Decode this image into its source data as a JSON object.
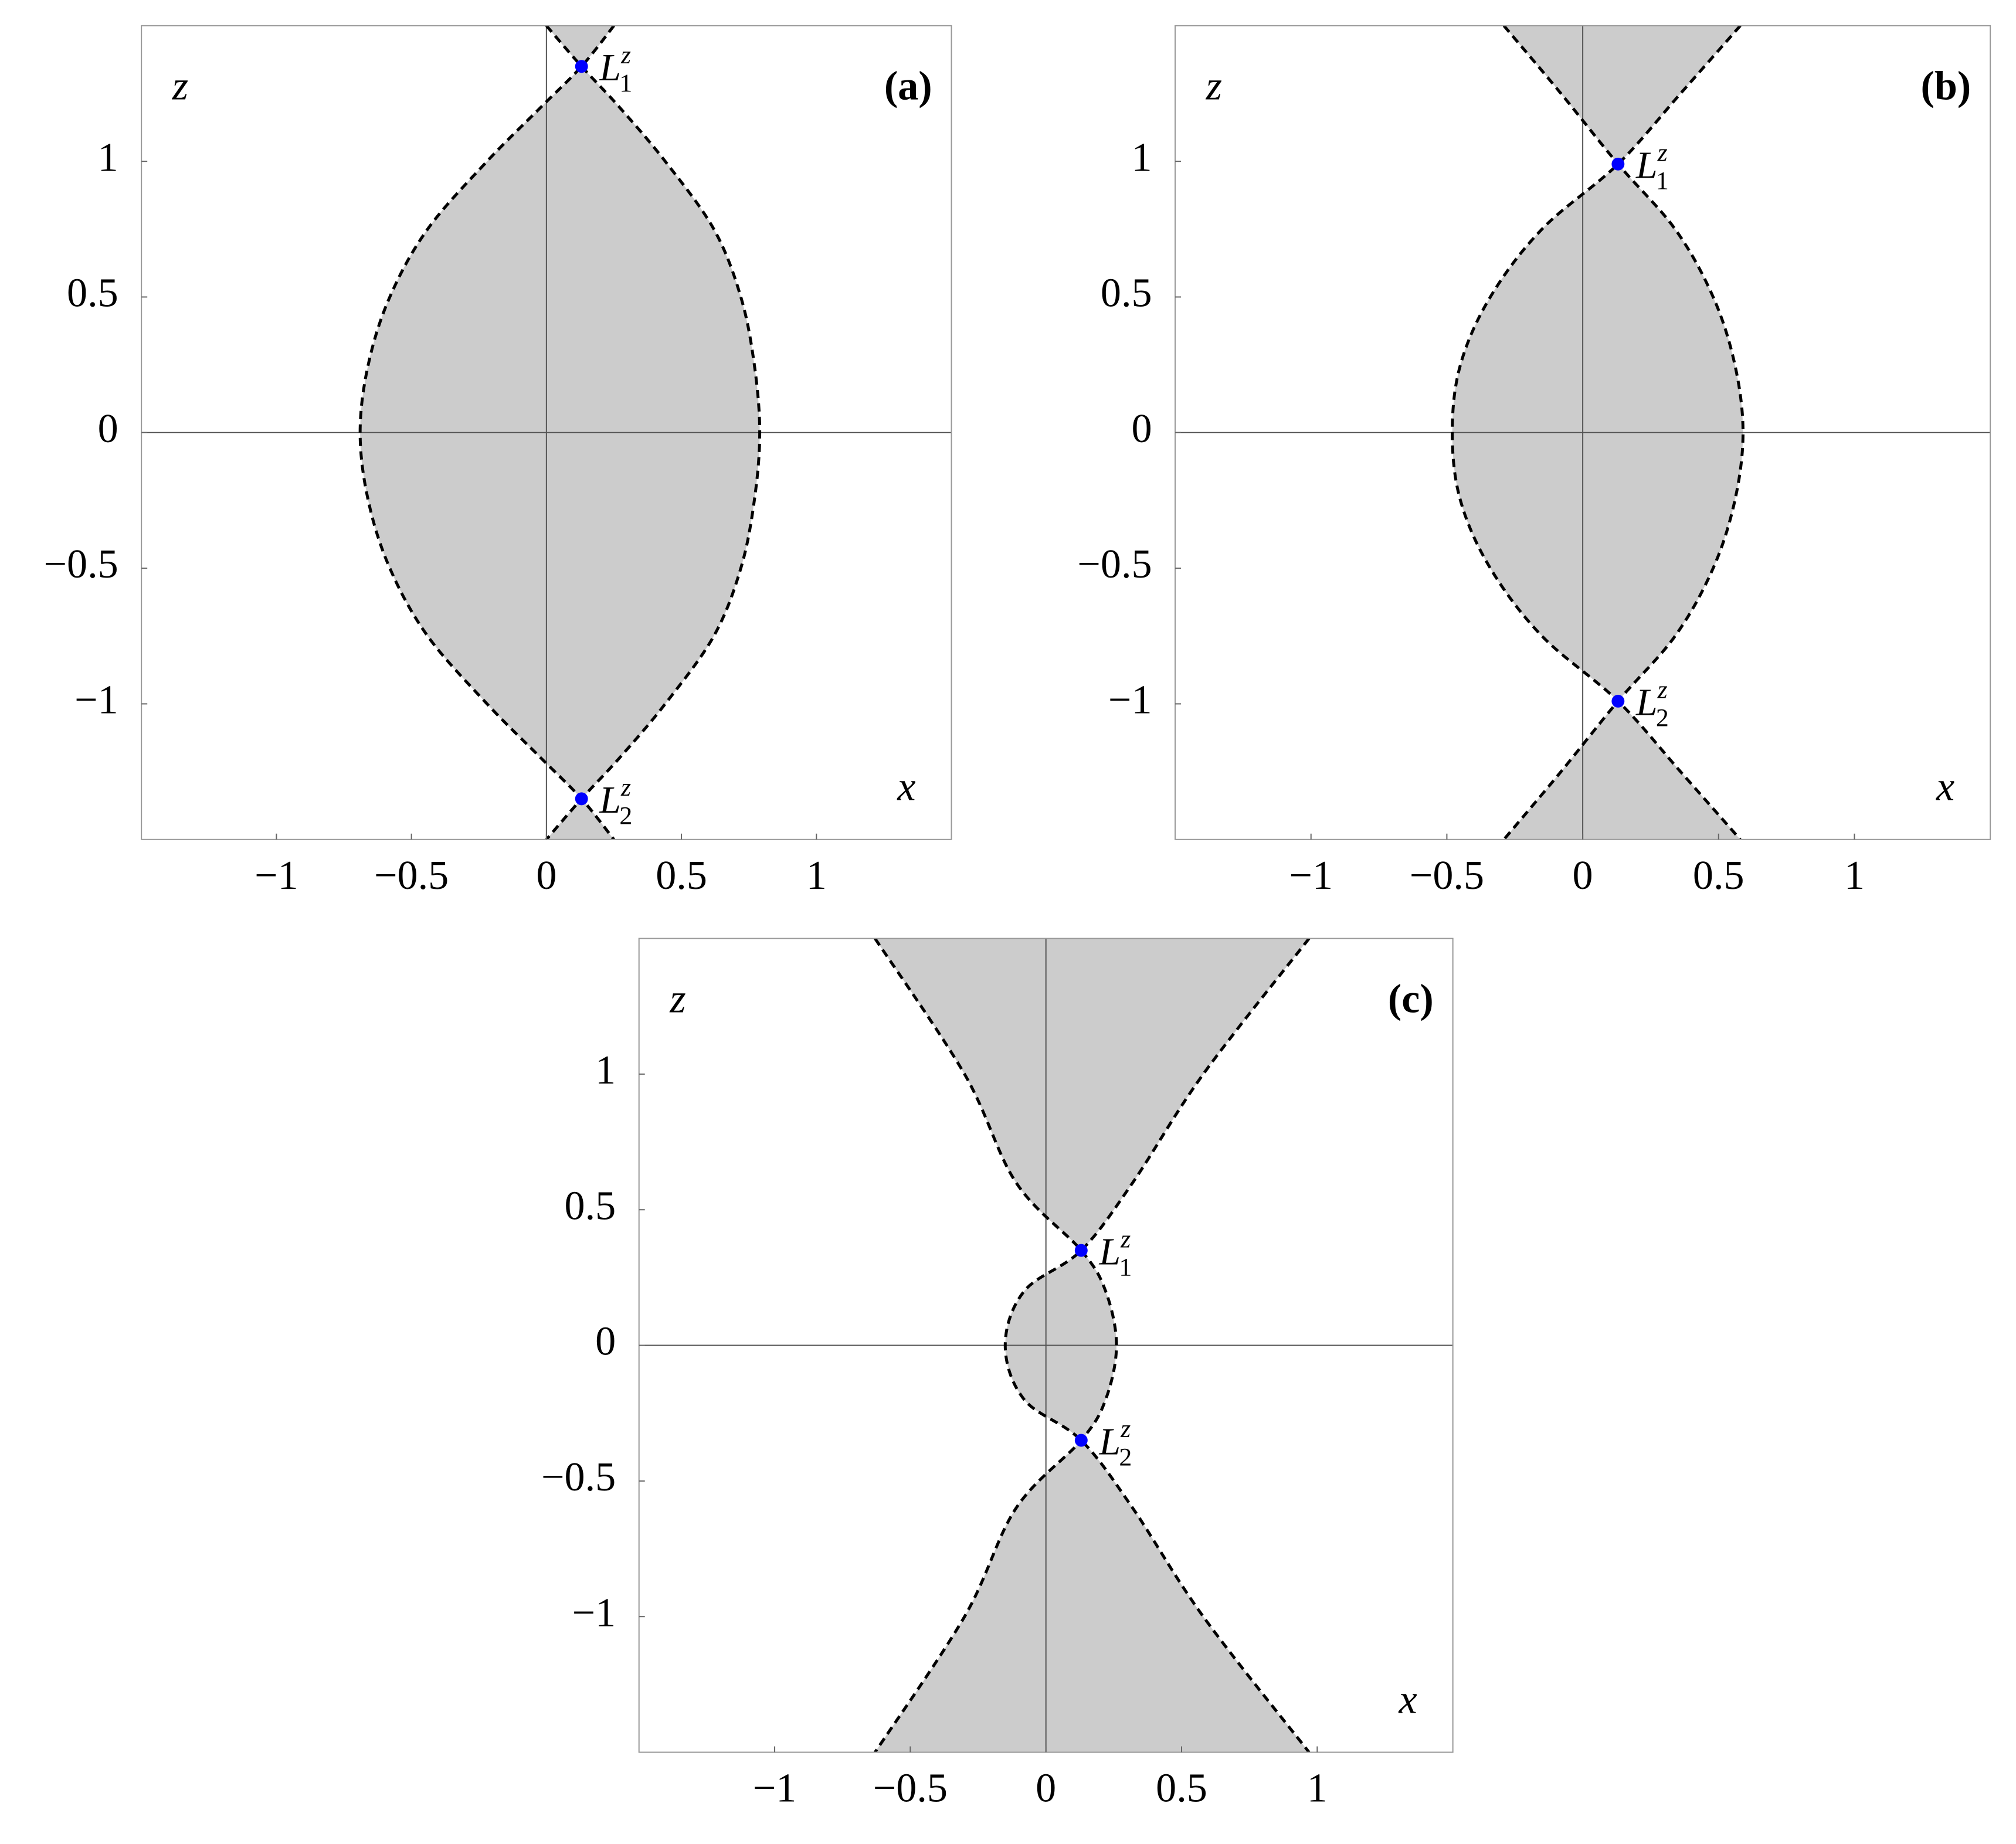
{
  "chart_data": [
    {
      "type": "region",
      "label": "(a)",
      "xlabel": "x",
      "ylabel": "z",
      "xlim": [
        -1.5,
        1.5
      ],
      "ylim": [
        -1.5,
        1.5
      ],
      "xticks": [
        {
          "value": -1,
          "label": "−1"
        },
        {
          "value": -0.5,
          "label": "−0.5"
        },
        0,
        0.5,
        1
      ],
      "yticks": [
        {
          "value": -1,
          "label": "−1"
        },
        {
          "value": -0.5,
          "label": "−0.5"
        },
        0,
        0.5,
        1
      ],
      "fill": "#cccccc",
      "curve_color": "#000000",
      "curves": [
        {
          "x": [
            0.25,
            0.13,
            -0.02,
            -0.22,
            -0.44,
            -0.58,
            -0.66,
            -0.69,
            -0.66,
            -0.58,
            -0.44,
            -0.22,
            -0.02,
            0.13,
            0.25
          ],
          "y": [
            1.5,
            1.35,
            1.2,
            1.0,
            0.75,
            0.5,
            0.25,
            0,
            -0.25,
            -0.5,
            -0.75,
            -1.0,
            -1.2,
            -1.35,
            -1.5
          ]
        },
        {
          "x": [
            0.0,
            0.13,
            0.27,
            0.44,
            0.62,
            0.72,
            0.77,
            0.79,
            0.77,
            0.72,
            0.62,
            0.44,
            0.27,
            0.13,
            0.0
          ],
          "y": [
            1.5,
            1.35,
            1.2,
            1.0,
            0.75,
            0.5,
            0.25,
            0,
            -0.25,
            -0.5,
            -0.75,
            -1.0,
            -1.2,
            -1.35,
            -1.5
          ]
        }
      ],
      "points": {
        "color": "#0000ff",
        "x": [
          0.13,
          0.13
        ],
        "y": [
          1.35,
          -1.35
        ],
        "labels": [
          {
            "base": "L",
            "sub": "1",
            "sup": "z"
          },
          {
            "base": "L",
            "sub": "2",
            "sup": "z"
          }
        ]
      }
    },
    {
      "type": "region",
      "label": "(b)",
      "xlabel": "x",
      "ylabel": "z",
      "xlim": [
        -1.5,
        1.5
      ],
      "ylim": [
        -1.5,
        1.5
      ],
      "xticks": [
        {
          "value": -1,
          "label": "−1"
        },
        {
          "value": -0.5,
          "label": "−0.5"
        },
        0,
        0.5,
        1
      ],
      "yticks": [
        {
          "value": -1,
          "label": "−1"
        },
        {
          "value": -0.5,
          "label": "−0.5"
        },
        0,
        0.5,
        1
      ],
      "fill": "#cccccc",
      "curve_color": "#000000",
      "curves": [
        {
          "x": [
            0.58,
            0.36,
            0.13,
            -0.15,
            -0.34,
            -0.45,
            -0.48,
            -0.45,
            -0.34,
            -0.15,
            0.13,
            0.36,
            0.58
          ],
          "y": [
            1.5,
            1.25,
            0.99,
            0.75,
            0.5,
            0.25,
            0,
            -0.25,
            -0.5,
            -0.75,
            -0.99,
            -1.25,
            -1.5
          ]
        },
        {
          "x": [
            -0.29,
            -0.08,
            0.13,
            0.34,
            0.48,
            0.56,
            0.59,
            0.56,
            0.48,
            0.34,
            0.13,
            -0.08,
            -0.29
          ],
          "y": [
            1.5,
            1.25,
            0.99,
            0.75,
            0.5,
            0.25,
            0,
            -0.25,
            -0.5,
            -0.75,
            -0.99,
            -1.25,
            -1.5
          ]
        }
      ],
      "points": {
        "color": "#0000ff",
        "x": [
          0.13,
          0.13
        ],
        "y": [
          0.99,
          -0.99
        ],
        "labels": [
          {
            "base": "L",
            "sub": "1",
            "sup": "z"
          },
          {
            "base": "L",
            "sub": "2",
            "sup": "z"
          }
        ]
      }
    },
    {
      "type": "region",
      "label": "(c)",
      "xlabel": "x",
      "ylabel": "z",
      "xlim": [
        -1.5,
        1.5
      ],
      "ylim": [
        -1.5,
        1.5
      ],
      "xticks": [
        {
          "value": -1,
          "label": "−1"
        },
        {
          "value": -0.5,
          "label": "−0.5"
        },
        0,
        0.5,
        1
      ],
      "yticks": [
        {
          "value": -1,
          "label": "−1"
        },
        {
          "value": -0.5,
          "label": "−0.5"
        },
        0,
        0.5,
        1
      ],
      "fill": "#cccccc",
      "curve_color": "#000000",
      "curves": [
        {
          "x": [
            0.97,
            0.58,
            0.32,
            0.13,
            -0.08,
            -0.15,
            -0.08,
            0.13,
            0.32,
            0.58,
            0.97
          ],
          "y": [
            1.5,
            1.0,
            0.6,
            0.35,
            0.2,
            0,
            -0.2,
            -0.35,
            -0.6,
            -1.0,
            -1.5
          ]
        },
        {
          "x": [
            -0.63,
            -0.3,
            -0.11,
            0.13,
            0.22,
            0.26,
            0.22,
            0.13,
            -0.11,
            -0.3,
            -0.63
          ],
          "y": [
            1.5,
            1.0,
            0.6,
            0.35,
            0.2,
            0,
            -0.2,
            -0.35,
            -0.6,
            -1.0,
            -1.5
          ]
        }
      ],
      "points": {
        "color": "#0000ff",
        "x": [
          0.13,
          0.13
        ],
        "y": [
          0.35,
          -0.35
        ],
        "labels": [
          {
            "base": "L",
            "sub": "1",
            "sup": "z"
          },
          {
            "base": "L",
            "sub": "2",
            "sup": "z"
          }
        ]
      }
    }
  ]
}
